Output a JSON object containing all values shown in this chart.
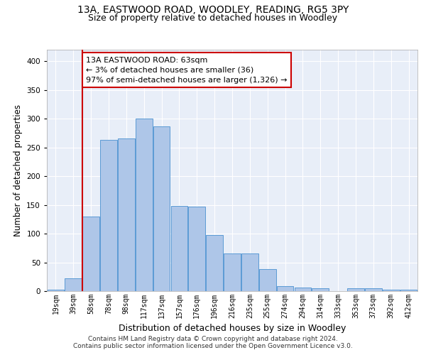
{
  "title1": "13A, EASTWOOD ROAD, WOODLEY, READING, RG5 3PY",
  "title2": "Size of property relative to detached houses in Woodley",
  "xlabel": "Distribution of detached houses by size in Woodley",
  "ylabel": "Number of detached properties",
  "footnote1": "Contains HM Land Registry data © Crown copyright and database right 2024.",
  "footnote2": "Contains public sector information licensed under the Open Government Licence v3.0.",
  "annotation_line1": "13A EASTWOOD ROAD: 63sqm",
  "annotation_line2": "← 3% of detached houses are smaller (36)",
  "annotation_line3": "97% of semi-detached houses are larger (1,326) →",
  "bin_labels": [
    "19sqm",
    "39sqm",
    "58sqm",
    "78sqm",
    "98sqm",
    "117sqm",
    "137sqm",
    "157sqm",
    "176sqm",
    "196sqm",
    "216sqm",
    "235sqm",
    "255sqm",
    "274sqm",
    "294sqm",
    "314sqm",
    "333sqm",
    "353sqm",
    "373sqm",
    "392sqm",
    "412sqm"
  ],
  "bar_values": [
    3,
    22,
    130,
    263,
    265,
    300,
    286,
    148,
    147,
    98,
    65,
    65,
    38,
    9,
    6,
    5,
    0,
    5,
    5,
    3,
    2
  ],
  "bar_color": "#aec6e8",
  "bar_edge_color": "#5b9bd5",
  "vline_x_index": 2,
  "vline_color": "#cc0000",
  "annotation_box_color": "#cc0000",
  "ylim": [
    0,
    420
  ],
  "yticks": [
    0,
    50,
    100,
    150,
    200,
    250,
    300,
    350,
    400
  ],
  "background_color": "#e8eef8",
  "grid_color": "#ffffff",
  "title1_fontsize": 10,
  "title2_fontsize": 9,
  "annotation_fontsize": 8,
  "xlabel_fontsize": 9,
  "ylabel_fontsize": 8.5,
  "tick_fontsize": 7,
  "footnote_fontsize": 6.5
}
